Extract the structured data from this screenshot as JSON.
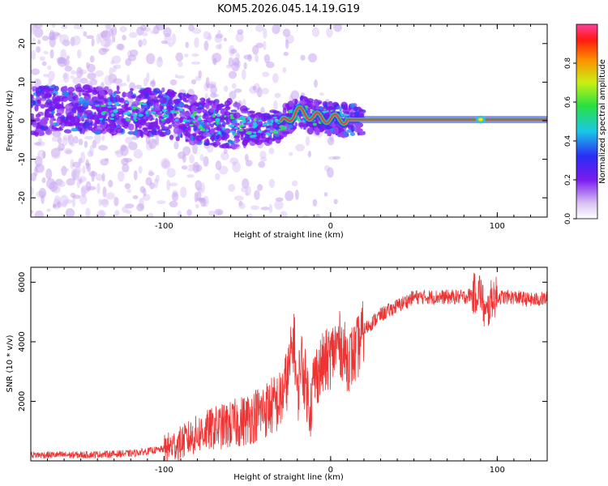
{
  "title": "KOM5.2026.045.14.19.G19",
  "chart_data": [
    {
      "type": "heatmap",
      "xlabel": "Height of straight line (km)",
      "ylabel": "Frequency (Hz)",
      "xlim": [
        -180,
        130
      ],
      "ylim": [
        -25,
        25
      ],
      "xticks": [
        -100,
        0,
        100
      ],
      "yticks": [
        -20,
        -10,
        0,
        10,
        20
      ],
      "colorbar": {
        "label": "Normalized spectral amplitude",
        "range": [
          0,
          1
        ],
        "ticks": [
          "0.0",
          "0.2",
          "0.4",
          "0.6",
          "0.8"
        ]
      },
      "ridge": [
        {
          "x": -180,
          "f": 2.5
        },
        {
          "x": -150,
          "f": 3.0
        },
        {
          "x": -120,
          "f": 2.5
        },
        {
          "x": -100,
          "f": 2.0
        },
        {
          "x": -80,
          "f": 0.0
        },
        {
          "x": -60,
          "f": -1.0
        },
        {
          "x": -40,
          "f": -2.0
        },
        {
          "x": -30,
          "f": -1.0
        },
        {
          "x": -20,
          "f": 2.5
        },
        {
          "x": -10,
          "f": 1.0
        },
        {
          "x": 0,
          "f": 0.5
        },
        {
          "x": 10,
          "f": 0.3
        },
        {
          "x": 130,
          "f": 0.3
        }
      ],
      "ridge_color": "#ff2d6a"
    },
    {
      "type": "line",
      "xlabel": "Height of straight line (km)",
      "ylabel": "SNR (10 * v/v)",
      "xlim": [
        -180,
        130
      ],
      "ylim": [
        0,
        6500
      ],
      "xticks": [
        -100,
        0,
        100
      ],
      "yticks": [
        2000,
        4000,
        6000
      ],
      "line_color": "#ee3333",
      "series": [
        {
          "name": "SNR",
          "x": [
            -180,
            -150,
            -120,
            -100,
            -90,
            -80,
            -70,
            -60,
            -50,
            -40,
            -30,
            -25,
            -22,
            -20,
            -18,
            -15,
            -12,
            -10,
            -5,
            0,
            5,
            10,
            15,
            20,
            30,
            40,
            50,
            60,
            70,
            80,
            85,
            90,
            93,
            97,
            100,
            110,
            120,
            130
          ],
          "y": [
            200,
            200,
            250,
            400,
            600,
            900,
            1100,
            1200,
            1400,
            1700,
            2000,
            3000,
            4200,
            2000,
            3500,
            2600,
            1800,
            2800,
            3200,
            3500,
            4000,
            3400,
            3600,
            4400,
            4900,
            5200,
            5500,
            5500,
            5500,
            5500,
            5600,
            5700,
            4800,
            5500,
            5500,
            5500,
            5400,
            5450
          ]
        }
      ]
    }
  ]
}
